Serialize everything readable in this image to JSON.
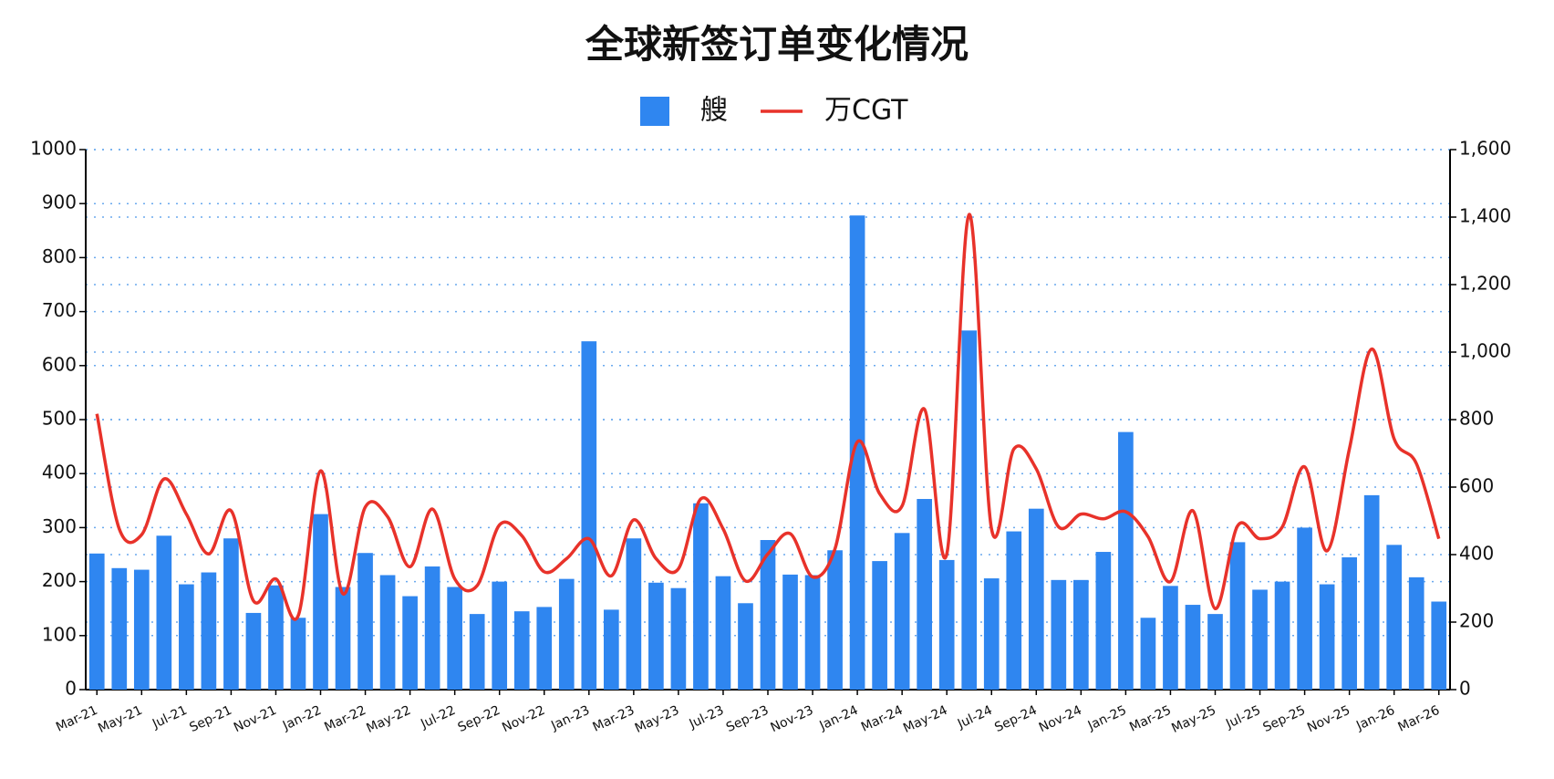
{
  "chart_data": {
    "type": "bar",
    "title": "全球新签订单变化情况",
    "categories": [
      "Mar-21",
      null,
      "May-21",
      null,
      "Jul-21",
      null,
      "Sep-21",
      null,
      "Nov-21",
      null,
      "Jan-22",
      null,
      "Mar-22",
      null,
      "May-22",
      null,
      "Jul-22",
      null,
      "Sep-22",
      null,
      "Nov-22",
      null,
      "Jan-23",
      null,
      "Mar-23",
      null,
      "May-23",
      null,
      "Jul-23",
      null,
      "Sep-23",
      null,
      "Nov-23",
      null,
      "Jan-24",
      null,
      "Mar-24",
      null,
      "May-24",
      null,
      "Jul-24",
      null,
      "Sep-24",
      null,
      "Nov-24",
      null,
      "Jan-25",
      null,
      "Mar-25",
      null,
      "May-25",
      null,
      "Jul-25",
      null,
      "Sep-25",
      null,
      "Nov-25",
      null,
      "Jan-26",
      null,
      "Mar-26"
    ],
    "series": [
      {
        "name": "艘",
        "color": "#2f86f0",
        "values": [
          252,
          225,
          222,
          285,
          195,
          217,
          280,
          142,
          193,
          133,
          325,
          190,
          253,
          212,
          173,
          228,
          190,
          140,
          200,
          145,
          153,
          205,
          645,
          148,
          280,
          198,
          188,
          345,
          210,
          160,
          277,
          213,
          212,
          258,
          878,
          238,
          290,
          353,
          240,
          665,
          206,
          293,
          335,
          203,
          203,
          255,
          477,
          133,
          192,
          157,
          140,
          273,
          185,
          200,
          300,
          195,
          245,
          360,
          268,
          208,
          163
        ]
      },
      {
        "name": "万CGT",
        "type": "line",
        "axis": "y2",
        "color": "#e8322a",
        "values": [
          817,
          476,
          459,
          624,
          520,
          402,
          530,
          263,
          328,
          219,
          648,
          284,
          541,
          512,
          364,
          535,
          328,
          308,
          488,
          456,
          349,
          388,
          447,
          337,
          503,
          388,
          358,
          565,
          476,
          322,
          402,
          462,
          334,
          417,
          734,
          580,
          544,
          831,
          402,
          1408,
          476,
          713,
          654,
          482,
          520,
          506,
          527,
          453,
          320,
          530,
          240,
          485,
          447,
          482,
          660,
          411,
          713,
          1009,
          743,
          669,
          447
        ]
      }
    ],
    "ylim": [
      0,
      1000
    ],
    "yticks": [
      0,
      100,
      200,
      300,
      400,
      500,
      600,
      700,
      800,
      900,
      1000
    ],
    "y2lim": [
      0,
      1600
    ],
    "y2ticks": [
      0,
      200,
      400,
      600,
      800,
      {
        "value": 1000,
        "label": "1,000"
      },
      {
        "value": 1200,
        "label": "1,200"
      },
      {
        "value": 1400,
        "label": "1,400"
      },
      {
        "value": 1600,
        "label": "1,600"
      }
    ],
    "grid": true
  }
}
